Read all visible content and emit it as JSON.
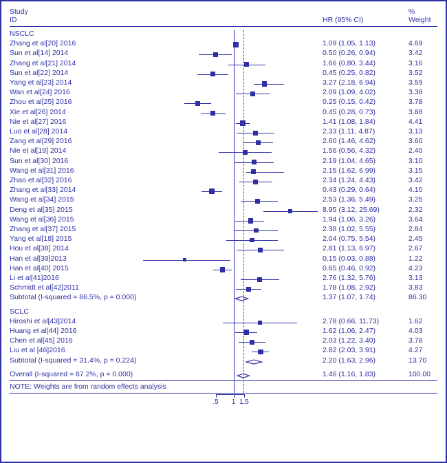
{
  "header": {
    "study": "Study",
    "id": "ID",
    "hr": "HR (95% CI)",
    "pct": "%",
    "weight": "Weight"
  },
  "groups": [
    {
      "name": "NSCLC",
      "rows": [
        {
          "label": "Zhang et al[20] 2016",
          "hr": 1.09,
          "lo": 1.05,
          "hi": 1.13,
          "hrtxt": "1.09 (1.05, 1.13)",
          "wt": "4.69"
        },
        {
          "label": "Sun et al[14] 2014",
          "hr": 0.5,
          "lo": 0.26,
          "hi": 0.94,
          "hrtxt": "0.50 (0.26, 0.94)",
          "wt": "3.42"
        },
        {
          "label": "Zhang et al[21] 2014",
          "hr": 1.66,
          "lo": 0.8,
          "hi": 3.44,
          "hrtxt": "1.66 (0.80, 3.44)",
          "wt": "3.16"
        },
        {
          "label": "Sun et al[22] 2014",
          "hr": 0.45,
          "lo": 0.25,
          "hi": 0.82,
          "hrtxt": "0.45 (0.25, 0.82)",
          "wt": "3.52"
        },
        {
          "label": "Yang et al[23] 2014",
          "hr": 3.27,
          "lo": 2.18,
          "hi": 6.94,
          "hrtxt": "3.27 (2.18, 6.94)",
          "wt": "3.59"
        },
        {
          "label": "Wan et al[24] 2016",
          "hr": 2.09,
          "lo": 1.09,
          "hi": 4.02,
          "hrtxt": "2.09 (1.09, 4.02)",
          "wt": "3.38"
        },
        {
          "label": "Zhou et al[25] 2016",
          "hr": 0.25,
          "lo": 0.15,
          "hi": 0.42,
          "hrtxt": "0.25 (0.15, 0.42)",
          "wt": "3.78"
        },
        {
          "label": "Xie et al[26] 2014",
          "hr": 0.45,
          "lo": 0.28,
          "hi": 0.73,
          "hrtxt": "0.45 (0.28, 0.73)",
          "wt": "3.88"
        },
        {
          "label": "Nie et al[27] 2016",
          "hr": 1.41,
          "lo": 1.08,
          "hi": 1.84,
          "hrtxt": "1.41 (1.08, 1.84)",
          "wt": "4.41"
        },
        {
          "label": "Luo et al[28] 2014",
          "hr": 2.33,
          "lo": 1.11,
          "hi": 4.87,
          "hrtxt": "2.33 (1.11, 4.87)",
          "wt": "3.13"
        },
        {
          "label": "Zang et al[29] 2016",
          "hr": 2.6,
          "lo": 1.46,
          "hi": 4.62,
          "hrtxt": "2.60 (1.46, 4.62)",
          "wt": "3.60"
        },
        {
          "label": "Nie et al[19] 2014",
          "hr": 1.56,
          "lo": 0.56,
          "hi": 4.32,
          "hrtxt": "1.56 (0.56, 4.32)",
          "wt": "2.40"
        },
        {
          "label": "Sun et al[30] 2016",
          "hr": 2.19,
          "lo": 1.04,
          "hi": 4.65,
          "hrtxt": "2.19 (1.04, 4.65)",
          "wt": "3.10"
        },
        {
          "label": "Wang et al[31] 2016",
          "hr": 2.15,
          "lo": 1.62,
          "hi": 6.99,
          "hrtxt": "2.15 (1.62, 6.99)",
          "wt": "3.15"
        },
        {
          "label": "Zhao et al[32] 2016",
          "hr": 2.34,
          "lo": 1.24,
          "hi": 4.43,
          "hrtxt": "2.34 (1.24, 4.43)",
          "wt": "3.42"
        },
        {
          "label": "Zhang et al[33] 2014",
          "hr": 0.43,
          "lo": 0.29,
          "hi": 0.64,
          "hrtxt": "0.43 (0.29, 0.64)",
          "wt": "4.10"
        },
        {
          "label": "Wang et al[34] 2015",
          "hr": 2.53,
          "lo": 1.36,
          "hi": 5.49,
          "hrtxt": "2.53 (1.36, 5.49)",
          "wt": "3.25"
        },
        {
          "label": "Deng et al[35] 2015",
          "hr": 8.95,
          "lo": 3.12,
          "hi": 25.69,
          "hrtxt": "8.95 (3.12, 25.69)",
          "wt": "2.32"
        },
        {
          "label": "Wang et al[36] 2015",
          "hr": 1.94,
          "lo": 1.06,
          "hi": 3.26,
          "hrtxt": "1.94 (1.06, 3.26)",
          "wt": "3.64"
        },
        {
          "label": "Zhang et al[37] 2015",
          "hr": 2.38,
          "lo": 1.02,
          "hi": 5.55,
          "hrtxt": "2.38 (1.02, 5.55)",
          "wt": "2.84"
        },
        {
          "label": "Yang et al[18] 2015",
          "hr": 2.04,
          "lo": 0.75,
          "hi": 5.54,
          "hrtxt": "2.04 (0.75, 5.54)",
          "wt": "2.45"
        },
        {
          "label": "Hou et al[38] 2014",
          "hr": 2.81,
          "lo": 1.13,
          "hi": 6.97,
          "hrtxt": "2.81 (1.13, 6.97)",
          "wt": "2.67"
        },
        {
          "label": "Han et al[39]2013",
          "hr": 0.15,
          "lo": 0.03,
          "hi": 0.88,
          "hrtxt": "0.15 (0.03, 0.88)",
          "wt": "1.22"
        },
        {
          "label": "Han et al[40] 2015",
          "hr": 0.65,
          "lo": 0.46,
          "hi": 0.92,
          "hrtxt": "0.65 (0.46, 0.92)",
          "wt": "4.23"
        },
        {
          "label": "Li et al[41]2016",
          "hr": 2.76,
          "lo": 1.32,
          "hi": 5.76,
          "hrtxt": "2.76 (1.32, 5.76)",
          "wt": "3.13"
        },
        {
          "label": "Schmidt et al[42]2011",
          "hr": 1.78,
          "lo": 1.08,
          "hi": 2.92,
          "hrtxt": "1.78 (1.08, 2.92)",
          "wt": "3.83"
        }
      ],
      "subtotal": {
        "label": "Subtotal  (I-squared = 86.5%, p = 0.000)",
        "hr": 1.37,
        "lo": 1.07,
        "hi": 1.74,
        "hrtxt": "1.37 (1.07, 1.74)",
        "wt": "86.30"
      }
    },
    {
      "name": "SCLC",
      "rows": [
        {
          "label": "Hiroshi et al[43]2014",
          "hr": 2.78,
          "lo": 0.66,
          "hi": 11.73,
          "hrtxt": "2.78 (0.66, 11.73)",
          "wt": "1.62"
        },
        {
          "label": "Huang et al[44] 2016",
          "hr": 1.62,
          "lo": 1.06,
          "hi": 2.47,
          "hrtxt": "1.62 (1.06, 2.47)",
          "wt": "4.03"
        },
        {
          "label": "Chen et al[45] 2016",
          "hr": 2.03,
          "lo": 1.22,
          "hi": 3.4,
          "hrtxt": "2.03 (1.22, 3.40)",
          "wt": "3.78"
        },
        {
          "label": "Liu et al [46]2016",
          "hr": 2.82,
          "lo": 2.03,
          "hi": 3.91,
          "hrtxt": "2.82 (2.03, 3.91)",
          "wt": "4.27"
        }
      ],
      "subtotal": {
        "label": "Subtotal  (I-squared = 31.4%, p = 0.224)",
        "hr": 2.2,
        "lo": 1.63,
        "hi": 2.96,
        "hrtxt": "2.20 (1.63, 2.96)",
        "wt": "13.70"
      }
    }
  ],
  "overall": {
    "label": "Overall  (I-squared = 87.2%, p = 0.000)",
    "hr": 1.46,
    "lo": 1.16,
    "hi": 1.83,
    "hrtxt": "1.46 (1.16, 1.83)",
    "wt": "100.00"
  },
  "note": "NOTE: Weights are from random effects analysis",
  "axis": {
    "ticks": [
      0.5,
      1,
      1.5
    ],
    "tickLabels": [
      ".5",
      "1",
      "1.5"
    ],
    "plotLeft": 190,
    "plotWidth": 260,
    "logMin": -3.6,
    "logMax": 3.3
  },
  "style": {
    "color": "#2e2fa5",
    "dashColor": "#c62828",
    "fontSize": 10.5,
    "maxMarker": 8,
    "minMarker": 2
  }
}
